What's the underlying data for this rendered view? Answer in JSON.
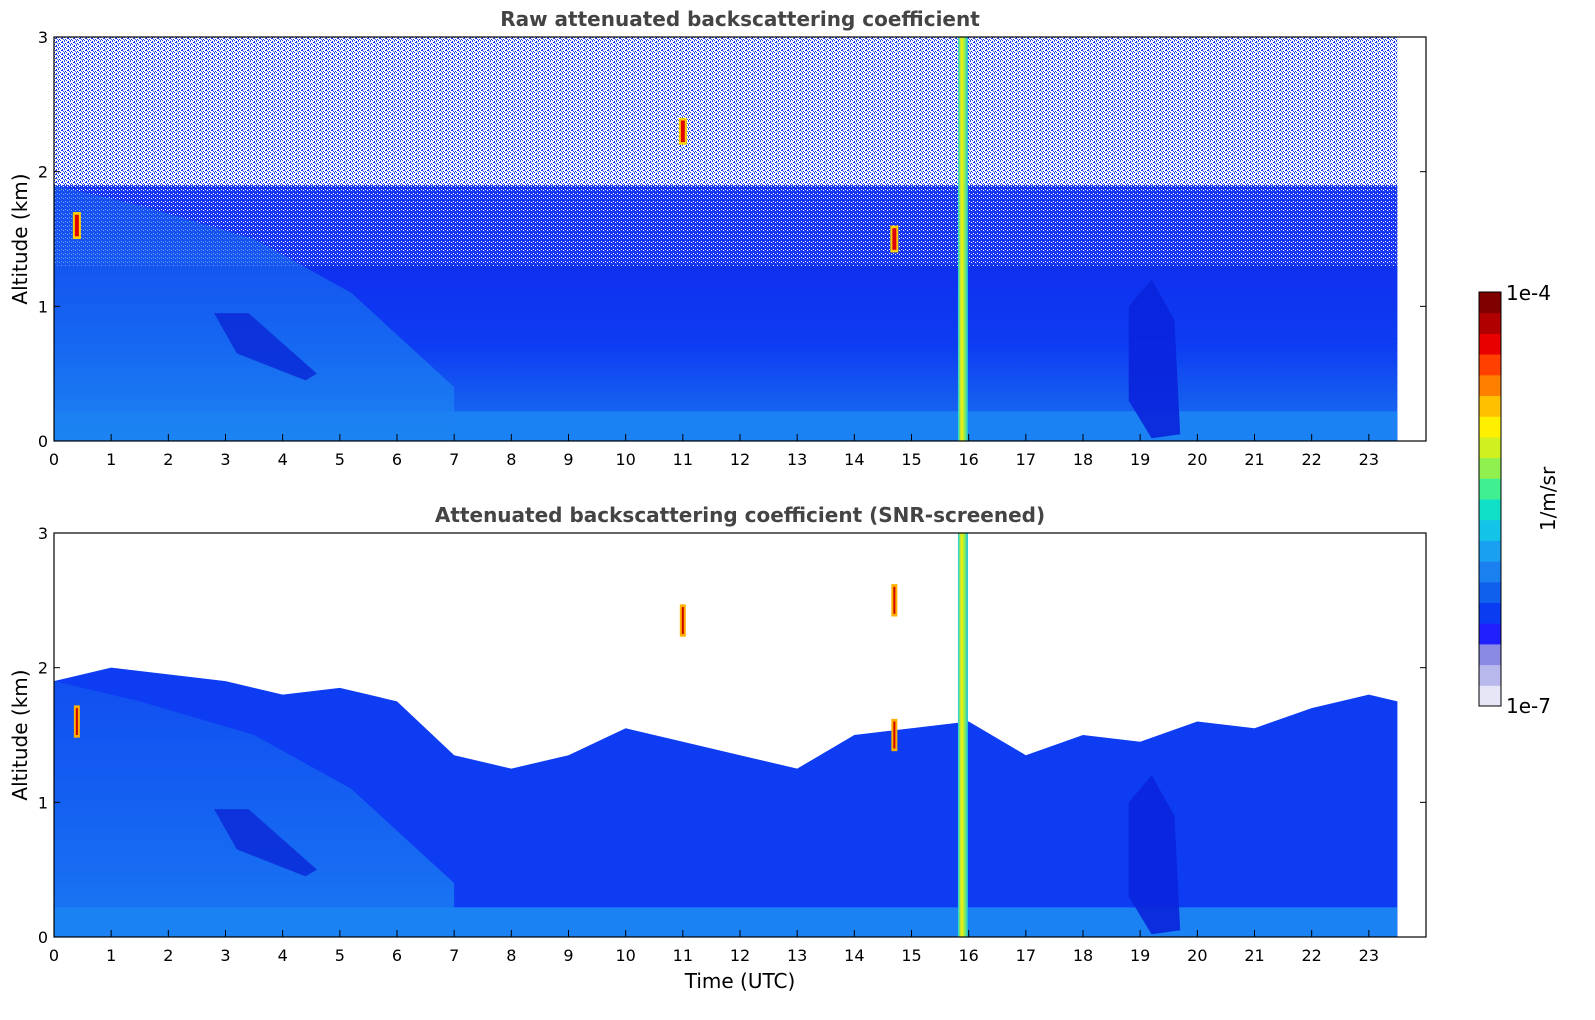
{
  "chart_data": [
    {
      "type": "heatmap",
      "title": "Raw attenuated backscattering coefficient",
      "xlabel": "",
      "ylabel": "Altitude (km)",
      "xlim": [
        0,
        24
      ],
      "ylim": [
        0,
        3
      ],
      "xticks": [
        "0",
        "1",
        "2",
        "3",
        "4",
        "5",
        "6",
        "7",
        "8",
        "9",
        "10",
        "11",
        "12",
        "13",
        "14",
        "15",
        "16",
        "17",
        "18",
        "19",
        "20",
        "21",
        "22",
        "23"
      ],
      "yticks": [
        "0",
        "1",
        "2",
        "3"
      ],
      "data_x_range": [
        0,
        23.5
      ],
      "noise_floor_km": 1.3,
      "features": [
        {
          "kind": "aerosol_layer",
          "x_range": [
            0,
            7
          ],
          "top_km": 1.9
        },
        {
          "kind": "dense_layer",
          "x_range": [
            2.8,
            4.6
          ],
          "y_range": [
            0.5,
            0.95
          ]
        },
        {
          "kind": "cloud",
          "x_center": 0.4,
          "y_km": 1.6
        },
        {
          "kind": "cloud",
          "x_center": 11.0,
          "y_km": 2.3
        },
        {
          "kind": "cloud",
          "x_center": 14.7,
          "y_km": 1.5
        },
        {
          "kind": "column",
          "x_center": 15.9,
          "y_range": [
            0,
            3
          ]
        },
        {
          "kind": "clear_band",
          "x_range": [
            18.8,
            19.6
          ]
        }
      ]
    },
    {
      "type": "heatmap",
      "title": "Attenuated backscattering coefficient (SNR-screened)",
      "xlabel": "Time (UTC)",
      "ylabel": "Altitude (km)",
      "xlim": [
        0,
        24
      ],
      "ylim": [
        0,
        3
      ],
      "xticks": [
        "0",
        "1",
        "2",
        "3",
        "4",
        "5",
        "6",
        "7",
        "8",
        "9",
        "10",
        "11",
        "12",
        "13",
        "14",
        "15",
        "16",
        "17",
        "18",
        "19",
        "20",
        "21",
        "22",
        "23"
      ],
      "yticks": [
        "0",
        "1",
        "2",
        "3"
      ],
      "data_x_range": [
        0,
        23.5
      ],
      "layer_top_km": [
        [
          0,
          1.9
        ],
        [
          1,
          2.0
        ],
        [
          2,
          1.95
        ],
        [
          3,
          1.9
        ],
        [
          4,
          1.8
        ],
        [
          5,
          1.85
        ],
        [
          6,
          1.75
        ],
        [
          7,
          1.35
        ],
        [
          8,
          1.25
        ],
        [
          9,
          1.35
        ],
        [
          10,
          1.55
        ],
        [
          11,
          1.45
        ],
        [
          12,
          1.35
        ],
        [
          13,
          1.25
        ],
        [
          14,
          1.5
        ],
        [
          15,
          1.55
        ],
        [
          16,
          1.6
        ],
        [
          17,
          1.35
        ],
        [
          18,
          1.5
        ],
        [
          19,
          1.45
        ],
        [
          20,
          1.6
        ],
        [
          21,
          1.55
        ],
        [
          22,
          1.7
        ],
        [
          23,
          1.8
        ],
        [
          23.5,
          1.75
        ]
      ]
    }
  ],
  "colorbar": {
    "label": "1/m/sr",
    "max_label": "1e-4",
    "min_label": "1e-7",
    "colors": [
      "#e6e6f7",
      "#b8b8ec",
      "#8a8ae4",
      "#2020ff",
      "#0a3cf2",
      "#1060ee",
      "#1a80f0",
      "#1aa0f0",
      "#14c4e8",
      "#10e0c8",
      "#40f090",
      "#90f050",
      "#d0f020",
      "#fff000",
      "#ffc000",
      "#ff8000",
      "#ff4000",
      "#e80000",
      "#b00000",
      "#800000"
    ]
  }
}
